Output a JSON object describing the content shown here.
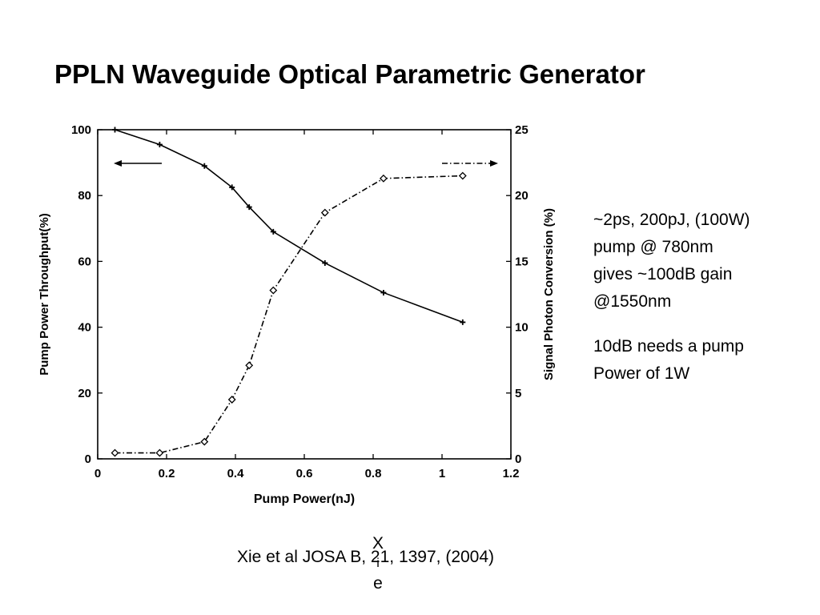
{
  "slide": {
    "title": "PPLN Waveguide Optical Parametric Generator",
    "notes": [
      "~2ps, 200pJ, (100W)",
      "pump @ 780nm",
      "gives ~100dB gain",
      "@1550nm",
      "10dB needs a pump",
      "Power of 1W"
    ],
    "citation": "Xie et al JOSA B, 21, 1397, (2004)",
    "stray_letters": [
      "X",
      "i",
      "e"
    ]
  },
  "chart_data": {
    "type": "line",
    "title": "",
    "xlabel": "Pump Power(nJ)",
    "ylabel": "Pump Power Throughput(%)",
    "y2label": "Signal Photon Conversion (%)",
    "xlim": [
      0,
      1.2
    ],
    "ylim": [
      0,
      100
    ],
    "y2lim": [
      0,
      25
    ],
    "x_ticks": [
      0,
      0.2,
      0.4,
      0.6,
      0.8,
      1,
      1.2
    ],
    "x_tick_labels": [
      "0",
      "0.2",
      "0.4",
      "0.6",
      "0.8",
      "1",
      "1.2"
    ],
    "y_ticks": [
      0,
      20,
      40,
      60,
      80,
      100
    ],
    "y_tick_labels": [
      "0",
      "20",
      "40",
      "60",
      "80",
      "100"
    ],
    "y2_ticks": [
      0,
      5,
      10,
      15,
      20,
      25
    ],
    "y2_tick_labels": [
      "0",
      "5",
      "10",
      "15",
      "20",
      "25"
    ],
    "grid": false,
    "line_color": "#000000",
    "series": [
      {
        "axis": "left",
        "line_style": "solid",
        "marker": "plus",
        "arrow": "left",
        "x": [
          0.05,
          0.18,
          0.31,
          0.39,
          0.44,
          0.51,
          0.66,
          0.83,
          1.06
        ],
        "y": [
          100,
          95.5,
          89,
          82.5,
          76.5,
          69,
          59.5,
          50.5,
          41.5
        ]
      },
      {
        "axis": "right",
        "line_style": "dashdot",
        "marker": "diamond",
        "arrow": "right",
        "x": [
          0.05,
          0.18,
          0.31,
          0.39,
          0.44,
          0.51,
          0.66,
          0.83,
          1.06
        ],
        "y": [
          0.45,
          0.45,
          1.3,
          4.5,
          7.1,
          12.8,
          18.7,
          21.3,
          21.5
        ]
      }
    ]
  }
}
